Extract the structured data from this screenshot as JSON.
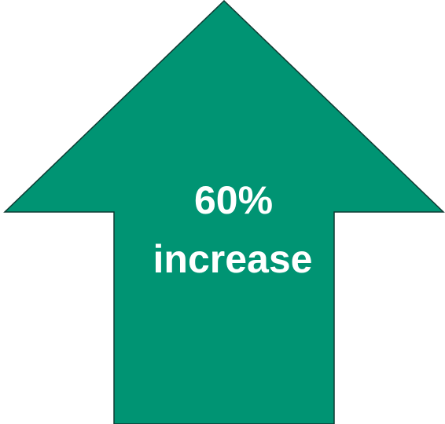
{
  "graphic": {
    "label_line_1": "60%",
    "label_line_2": "increase",
    "arrow_color": "#009473",
    "outline_color": "#0f3a32",
    "text_color": "#ffffff",
    "icon": "up-arrow-icon"
  }
}
